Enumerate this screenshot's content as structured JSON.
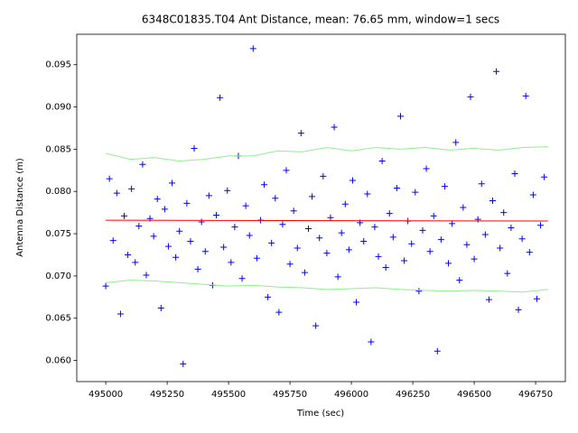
{
  "chart_data": {
    "type": "scatter",
    "title": "6348C01835.T04 Ant Distance, mean: 76.65 mm, window=1 secs",
    "x_label": "Time (sec)",
    "y_label": "Antenna Distance (m)",
    "xlim": [
      494882,
      496871
    ],
    "ylim": [
      0.0575,
      0.0986
    ],
    "xticks": [
      495000,
      495250,
      495500,
      495750,
      496000,
      496250,
      496500,
      496750
    ],
    "yticks": [
      {
        "value": 0.06,
        "label": "0.060"
      },
      {
        "value": 0.065,
        "label": "0.065"
      },
      {
        "value": 0.07,
        "label": "0.070"
      },
      {
        "value": 0.075,
        "label": "0.075"
      },
      {
        "value": 0.08,
        "label": "0.080"
      },
      {
        "value": 0.085,
        "label": "0.085"
      },
      {
        "value": 0.09,
        "label": "0.090"
      },
      {
        "value": 0.095,
        "label": "0.095"
      }
    ],
    "grid": false,
    "series": [
      {
        "color": "#0000ff",
        "marker": "+",
        "x": [
          495000,
          495015,
          495030,
          495045,
          495060,
          495075,
          495090,
          495105,
          495120,
          495135,
          495150,
          495165,
          495180,
          495195,
          495210,
          495225,
          495240,
          495255,
          495270,
          495285,
          495300,
          495315,
          495330,
          495345,
          495360,
          495375,
          495390,
          495405,
          495420,
          495435,
          495450,
          495465,
          495480,
          495495,
          495510,
          495525,
          495540,
          495555,
          495570,
          495585,
          495600,
          495615,
          495630,
          495645,
          495660,
          495675,
          495690,
          495705,
          495720,
          495735,
          495750,
          495765,
          495780,
          495795,
          495810,
          495825,
          495840,
          495855,
          495870,
          495885,
          495900,
          495915,
          495930,
          495945,
          495960,
          495975,
          495990,
          496005,
          496020,
          496035,
          496050,
          496065,
          496080,
          496095,
          496110,
          496125,
          496140,
          496155,
          496170,
          496185,
          496200,
          496215,
          496230,
          496245,
          496260,
          496275,
          496290,
          496305,
          496320,
          496335,
          496350,
          496365,
          496380,
          496395,
          496410,
          496425,
          496440,
          496455,
          496470,
          496485,
          496500,
          496515,
          496530,
          496545,
          496560,
          496575,
          496590,
          496605,
          496620,
          496635,
          496650,
          496665,
          496680,
          496695,
          496710,
          496725,
          496740,
          496755,
          496770,
          496785
        ],
        "values": [
          0.0688,
          0.0815,
          0.0742,
          0.0798,
          0.0655,
          0.0771,
          0.0725,
          0.0803,
          0.0716,
          0.0759,
          0.0832,
          0.0701,
          0.0768,
          0.0747,
          0.0791,
          0.0662,
          0.0779,
          0.0735,
          0.081,
          0.0722,
          0.0753,
          0.0596,
          0.0786,
          0.0741,
          0.0851,
          0.0708,
          0.0764,
          0.0729,
          0.0795,
          0.0689,
          0.0772,
          0.0911,
          0.0734,
          0.0801,
          0.0716,
          0.0758,
          0.0842,
          0.0697,
          0.0783,
          0.0748,
          0.0969,
          0.0721,
          0.0766,
          0.0808,
          0.0675,
          0.0739,
          0.0792,
          0.0657,
          0.0761,
          0.0825,
          0.0714,
          0.0777,
          0.0733,
          0.0869,
          0.0704,
          0.0756,
          0.0794,
          0.0641,
          0.0745,
          0.0818,
          0.0727,
          0.0769,
          0.0876,
          0.0699,
          0.0751,
          0.0785,
          0.0731,
          0.0813,
          0.0669,
          0.0763,
          0.0741,
          0.0797,
          0.0622,
          0.0758,
          0.0723,
          0.0836,
          0.071,
          0.0774,
          0.0746,
          0.0804,
          0.0889,
          0.0718,
          0.0765,
          0.0738,
          0.0799,
          0.0682,
          0.0754,
          0.0827,
          0.0729,
          0.0771,
          0.0611,
          0.0743,
          0.0806,
          0.0715,
          0.0762,
          0.0858,
          0.0695,
          0.0781,
          0.0737,
          0.0912,
          0.072,
          0.0767,
          0.0809,
          0.0749,
          0.0672,
          0.0789,
          0.0942,
          0.0733,
          0.0775,
          0.0703,
          0.0757,
          0.0821,
          0.066,
          0.0744,
          0.0913,
          0.0728,
          0.0796,
          0.0673,
          0.076,
          0.0817
        ]
      },
      {
        "color": "#90ee90",
        "x": [
          495000,
          495100,
          495200,
          495300,
          495400,
          495500,
          495600,
          495700,
          495800,
          495900,
          496000,
          496100,
          496200,
          496300,
          496400,
          496500,
          496600,
          496700,
          496800
        ],
        "values": [
          0.0845,
          0.0838,
          0.084,
          0.0836,
          0.0838,
          0.0842,
          0.0842,
          0.0848,
          0.0847,
          0.0852,
          0.0848,
          0.0852,
          0.085,
          0.0852,
          0.0849,
          0.0851,
          0.0849,
          0.0852,
          0.0853
        ]
      },
      {
        "color": "#90ee90",
        "x": [
          495000,
          495100,
          495200,
          495300,
          495400,
          495500,
          495600,
          495700,
          495800,
          495900,
          496000,
          496100,
          496200,
          496300,
          496400,
          496500,
          496600,
          496700,
          496800
        ],
        "values": [
          0.0692,
          0.0695,
          0.0694,
          0.0692,
          0.069,
          0.0688,
          0.0689,
          0.0687,
          0.0686,
          0.0684,
          0.0685,
          0.0686,
          0.0684,
          0.0683,
          0.0682,
          0.0683,
          0.0682,
          0.0681,
          0.0684
        ]
      },
      {
        "color": "#ff0000",
        "x": [
          495000,
          496800
        ],
        "values": [
          0.0766,
          0.0765
        ]
      }
    ]
  }
}
